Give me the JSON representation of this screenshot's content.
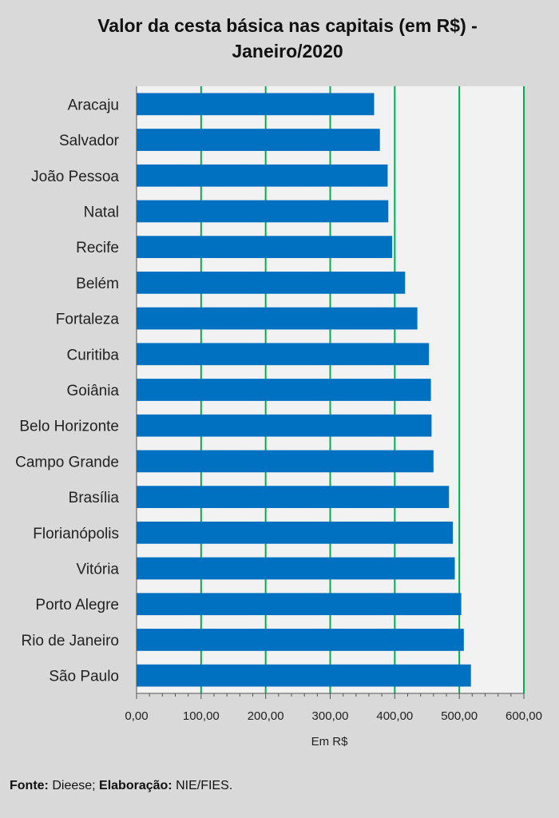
{
  "chart_data": {
    "type": "bar",
    "orientation": "horizontal",
    "title": "Valor da cesta básica nas capitais (em R$) - Janeiro/2020",
    "title_lines": [
      "Valor da cesta básica nas capitais (em R$) -",
      "Janeiro/2020"
    ],
    "categories": [
      "Aracaju",
      "Salvador",
      "João Pessoa",
      "Natal",
      "Recife",
      "Belém",
      "Fortaleza",
      "Curitiba",
      "Goiânia",
      "Belo Horizonte",
      "Campo Grande",
      "Brasília",
      "Florianópolis",
      "Vitória",
      "Porto Alegre",
      "Rio de Janeiro",
      "São Paulo"
    ],
    "values": [
      368,
      377,
      389,
      390,
      396,
      416,
      435,
      453,
      456,
      457,
      460,
      484,
      490,
      493,
      503,
      507,
      518
    ],
    "xlabel": "Em R$",
    "ylabel": "",
    "xlim": [
      0,
      600
    ],
    "xticks": [
      "0,00",
      "100,00",
      "200,00",
      "300,00",
      "400,00",
      "500,00",
      "600,00"
    ],
    "grid": true,
    "colors": {
      "bar": "#0070c0",
      "grid": "#00b050",
      "plot_bg": "#f2f2f2",
      "page_bg": "#d9d9d9"
    }
  },
  "footer": {
    "source_label": "Fonte:",
    "source_value": "Dieese;",
    "credit_label": "Elaboração:",
    "credit_value": "NIE/FIES."
  }
}
